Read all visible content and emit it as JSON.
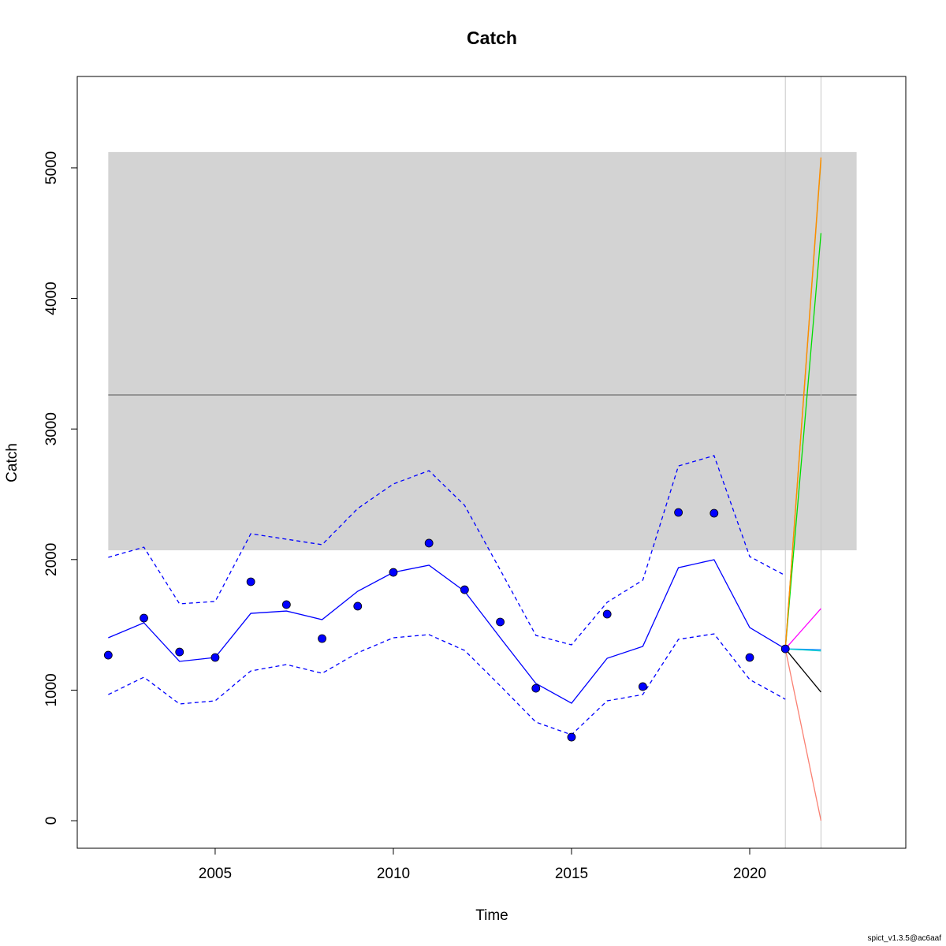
{
  "chart_data": {
    "type": "line",
    "title": "Catch",
    "x_label": "Time",
    "y_label": "Catch",
    "footer": "spict_v1.3.5@ac6aaf",
    "x": [
      2002,
      2003,
      2004,
      2005,
      2006,
      2007,
      2008,
      2009,
      2010,
      2011,
      2012,
      2013,
      2014,
      2015,
      2016,
      2017,
      2018,
      2019,
      2020,
      2021
    ],
    "series": [
      {
        "style": "points",
        "color": "#0000ff",
        "values": [
          1268,
          1552,
          1292,
          1250,
          1830,
          1655,
          1395,
          1643,
          1902,
          2126,
          1769,
          1522,
          1014,
          640,
          1582,
          1027,
          2361,
          2355,
          1250,
          1316
        ]
      },
      {
        "style": "solid",
        "color": "#0000ff",
        "values": [
          1401,
          1516,
          1220,
          1250,
          1588,
          1606,
          1540,
          1757,
          1902,
          1957,
          1757,
          1401,
          1051,
          900,
          1244,
          1335,
          1938,
          1999,
          1479,
          1316
        ]
      },
      {
        "style": "dashed",
        "color": "#0000ff",
        "values": [
          2017,
          2095,
          1661,
          1679,
          2198,
          2156,
          2114,
          2391,
          2579,
          2681,
          2415,
          1920,
          1419,
          1347,
          1673,
          1842,
          2717,
          2796,
          2023,
          1878
        ]
      },
      {
        "style": "dashed",
        "color": "#0000ff",
        "values": [
          966,
          1099,
          894,
          918,
          1147,
          1196,
          1129,
          1286,
          1401,
          1425,
          1304,
          1033,
          755,
          658,
          918,
          966,
          1389,
          1431,
          1081,
          930
        ]
      }
    ],
    "forecasts": [
      {
        "color": "#fa8072",
        "x": [
          2021,
          2022
        ],
        "values": [
          1316,
          0
        ]
      },
      {
        "color": "#000000",
        "x": [
          2021,
          2022
        ],
        "values": [
          1316,
          985
        ]
      },
      {
        "color": "#1e90ff",
        "x": [
          2021,
          2022
        ],
        "values": [
          1316,
          1310
        ]
      },
      {
        "color": "#00cccc",
        "x": [
          2021,
          2022
        ],
        "values": [
          1316,
          1300
        ]
      },
      {
        "color": "#ff00ff",
        "x": [
          2021,
          2022
        ],
        "values": [
          1316,
          1625
        ]
      },
      {
        "color": "#00dd00",
        "x": [
          2021,
          2022
        ],
        "values": [
          1316,
          4500
        ]
      },
      {
        "color": "#c8a000",
        "x": [
          2021,
          2022
        ],
        "values": [
          1316,
          5060
        ]
      },
      {
        "color": "#ff8c00",
        "x": [
          2021,
          2022
        ],
        "values": [
          1316,
          5080
        ]
      }
    ],
    "band": {
      "x": [
        2002,
        2023
      ],
      "y": [
        2071,
        5121
      ],
      "color": "#d3d3d3"
    },
    "hline": {
      "value": 3261,
      "color": "#555555"
    },
    "vlines": [
      2021,
      2022
    ],
    "xlim": [
      2001.13,
      2024.38
    ],
    "ylim": [
      -211,
      5700
    ],
    "xticks": [
      2005,
      2010,
      2015,
      2020
    ],
    "yticks": [
      0,
      1000,
      2000,
      3000,
      4000,
      5000
    ]
  }
}
